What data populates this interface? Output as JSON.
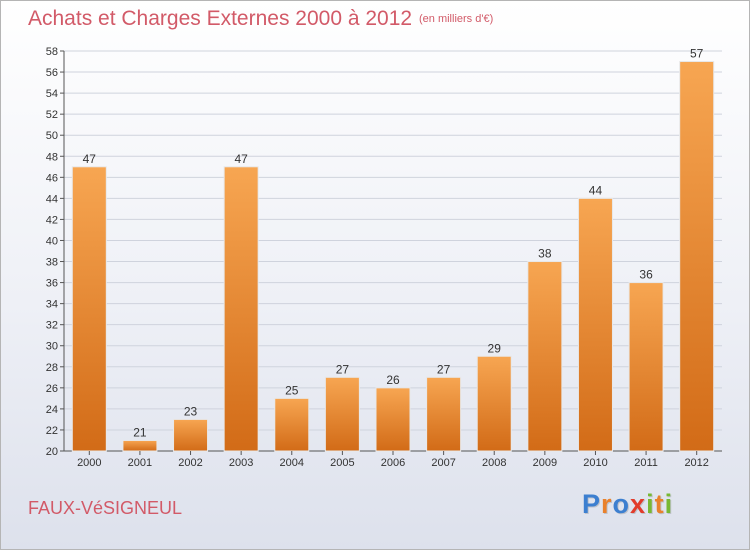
{
  "header": {
    "title": "Achats et Charges Externes 2000 à 2012",
    "subtitle": "(en milliers d'€)"
  },
  "footer": {
    "commune": "FAUX-VéSIGNEUL",
    "brand": "Proxiti",
    "brand_letters": [
      {
        "ch": "P",
        "color": "#3c7fd0"
      },
      {
        "ch": "r",
        "color": "#e9812c"
      },
      {
        "ch": "o",
        "color": "#3c7fd0"
      },
      {
        "ch": "x",
        "color": "#e23c2c"
      },
      {
        "ch": "i",
        "color": "#78b833"
      },
      {
        "ch": "t",
        "color": "#e9812c"
      },
      {
        "ch": "i",
        "color": "#78b833"
      }
    ]
  },
  "colors": {
    "bar_light": "#f7a652",
    "bar_dark": "#d26b17",
    "axis": "#555555",
    "grid": "#cfd3dd"
  },
  "chart_data": {
    "type": "bar",
    "categories": [
      "2000",
      "2001",
      "2002",
      "2003",
      "2004",
      "2005",
      "2006",
      "2007",
      "2008",
      "2009",
      "2010",
      "2011",
      "2012"
    ],
    "values": [
      47,
      21,
      23,
      47,
      25,
      27,
      26,
      27,
      29,
      38,
      44,
      36,
      57
    ],
    "ylim": [
      20,
      58
    ],
    "yticks": [
      20,
      22,
      24,
      26,
      28,
      30,
      32,
      34,
      36,
      38,
      40,
      42,
      44,
      46,
      48,
      50,
      52,
      54,
      56,
      58
    ],
    "grid": true,
    "legend": "none"
  }
}
